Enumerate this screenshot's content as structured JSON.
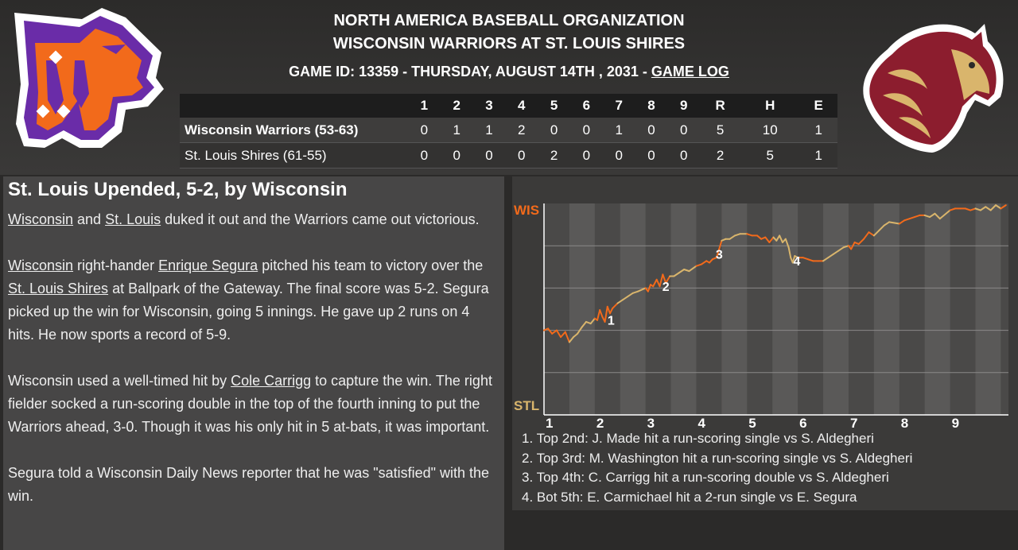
{
  "header": {
    "league": "NORTH AMERICA BASEBALL ORGANIZATION",
    "matchup": "WISCONSIN WARRIORS AT ST. LOUIS SHIRES",
    "game_info": "GAME ID: 13359 - THURSDAY, AUGUST 14TH , 2031 - ",
    "game_log_link": "GAME LOG"
  },
  "colors": {
    "away": "#f26a1b",
    "home": "#d9b56c",
    "away_logo_purple": "#6a2ca8",
    "home_logo_maroon": "#8c1d2e"
  },
  "boxscore": {
    "columns": [
      "1",
      "2",
      "3",
      "4",
      "5",
      "6",
      "7",
      "8",
      "9",
      "R",
      "H",
      "E"
    ],
    "rows": [
      {
        "team": "Wisconsin Warriors (53-63)",
        "values": [
          "0",
          "1",
          "1",
          "2",
          "0",
          "0",
          "1",
          "0",
          "0",
          "5",
          "10",
          "1"
        ]
      },
      {
        "team": "St. Louis Shires (61-55)",
        "values": [
          "0",
          "0",
          "0",
          "0",
          "2",
          "0",
          "0",
          "0",
          "0",
          "2",
          "5",
          "1"
        ]
      }
    ]
  },
  "article": {
    "headline": "St. Louis Upended, 5-2, by Wisconsin",
    "p1": {
      "link1": "Wisconsin",
      "t1": " and ",
      "link2": "St. Louis",
      "t2": " duked it out and the Warriors came out victorious."
    },
    "p2": {
      "link1": "Wisconsin",
      "t1": " right-hander ",
      "link2": "Enrique Segura",
      "t2": " pitched his team to victory over the ",
      "link3": "St. Louis Shires",
      "t3": " at Ballpark of the Gateway. The final score was 5-2. Segura picked up the win for Wisconsin, going 5 innings. He gave up 2 runs on 4 hits. He now sports a record of 5-9."
    },
    "p3": {
      "t1": "Wisconsin used a well-timed hit by ",
      "link1": "Cole Carrigg",
      "t2": " to capture the win. The right fielder socked a run-scoring double in the top of the fourth inning to put the Warriors ahead, 3-0. Though it was his only hit in 5 at-bats, it was important."
    },
    "p4": "Segura told a Wisconsin Daily News reporter that he was \"satisfied\" with the win."
  },
  "chart_data": {
    "type": "line",
    "ylabels": {
      "top": "WIS",
      "bottom": "STL"
    },
    "x_ticks": [
      "1",
      "2",
      "3",
      "4",
      "5",
      "6",
      "7",
      "8",
      "9"
    ],
    "series": [
      {
        "values": [
          [
            0.0,
            0.5
          ],
          [
            0.08,
            0.51
          ],
          [
            0.16,
            0.48
          ],
          [
            0.25,
            0.5
          ],
          [
            0.33,
            0.46
          ],
          [
            0.42,
            0.49
          ],
          [
            0.5,
            0.43
          ],
          [
            0.58,
            0.46
          ],
          [
            0.66,
            0.48
          ],
          [
            0.75,
            0.52
          ],
          [
            0.83,
            0.55
          ],
          [
            0.92,
            0.54
          ],
          [
            1.0,
            0.57
          ],
          [
            1.05,
            0.56
          ],
          [
            1.1,
            0.62
          ],
          [
            1.15,
            0.58
          ],
          [
            1.2,
            0.55
          ],
          [
            1.25,
            0.64
          ],
          [
            1.3,
            0.6
          ],
          [
            1.35,
            0.63
          ],
          [
            1.45,
            0.66
          ],
          [
            1.55,
            0.68
          ],
          [
            1.65,
            0.7
          ],
          [
            1.75,
            0.72
          ],
          [
            1.85,
            0.73
          ],
          [
            2.0,
            0.75
          ],
          [
            2.05,
            0.73
          ],
          [
            2.1,
            0.77
          ],
          [
            2.15,
            0.76
          ],
          [
            2.22,
            0.8
          ],
          [
            2.28,
            0.76
          ],
          [
            2.34,
            0.83
          ],
          [
            2.4,
            0.78
          ],
          [
            2.48,
            0.82
          ],
          [
            2.56,
            0.82
          ],
          [
            2.66,
            0.84
          ],
          [
            2.76,
            0.86
          ],
          [
            2.86,
            0.85
          ],
          [
            3.0,
            0.88
          ],
          [
            3.1,
            0.89
          ],
          [
            3.2,
            0.91
          ],
          [
            3.26,
            0.9
          ],
          [
            3.32,
            0.92
          ],
          [
            3.4,
            0.93
          ],
          [
            3.45,
            0.98
          ],
          [
            3.5,
            1.03
          ],
          [
            3.58,
            1.04
          ],
          [
            3.66,
            1.04
          ],
          [
            3.76,
            1.06
          ],
          [
            3.86,
            1.07
          ],
          [
            4.0,
            1.07
          ],
          [
            4.1,
            1.06
          ],
          [
            4.2,
            1.06
          ],
          [
            4.28,
            1.04
          ],
          [
            4.36,
            1.05
          ],
          [
            4.44,
            1.02
          ],
          [
            4.52,
            1.05
          ],
          [
            4.58,
            1.03
          ],
          [
            4.64,
            1.06
          ],
          [
            4.7,
            1.02
          ],
          [
            4.76,
            1.04
          ],
          [
            4.82,
            0.99
          ],
          [
            4.86,
            0.93
          ],
          [
            4.9,
            0.9
          ],
          [
            4.94,
            0.94
          ],
          [
            5.0,
            0.93
          ],
          [
            5.1,
            0.93
          ],
          [
            5.2,
            0.92
          ],
          [
            5.3,
            0.91
          ],
          [
            5.4,
            0.91
          ],
          [
            5.5,
            0.91
          ],
          [
            5.6,
            0.93
          ],
          [
            5.7,
            0.95
          ],
          [
            5.8,
            0.97
          ],
          [
            5.9,
            0.99
          ],
          [
            6.0,
            1.0
          ],
          [
            6.05,
            0.98
          ],
          [
            6.12,
            1.02
          ],
          [
            6.2,
            1.01
          ],
          [
            6.3,
            1.04
          ],
          [
            6.4,
            1.08
          ],
          [
            6.5,
            1.06
          ],
          [
            6.6,
            1.09
          ],
          [
            6.7,
            1.12
          ],
          [
            6.8,
            1.14
          ],
          [
            7.0,
            1.13
          ],
          [
            7.1,
            1.15
          ],
          [
            7.2,
            1.16
          ],
          [
            7.3,
            1.17
          ],
          [
            7.4,
            1.18
          ],
          [
            7.5,
            1.18
          ],
          [
            7.6,
            1.17
          ],
          [
            7.7,
            1.19
          ],
          [
            7.8,
            1.16
          ],
          [
            8.0,
            1.21
          ],
          [
            8.1,
            1.22
          ],
          [
            8.2,
            1.22
          ],
          [
            8.3,
            1.22
          ],
          [
            8.4,
            1.21
          ],
          [
            8.5,
            1.22
          ],
          [
            8.6,
            1.21
          ],
          [
            8.7,
            1.23
          ],
          [
            8.8,
            1.21
          ],
          [
            8.9,
            1.24
          ],
          [
            9.0,
            1.22
          ],
          [
            9.1,
            1.24
          ]
        ]
      }
    ],
    "annotations": [
      {
        "label": "1",
        "x": 1.22,
        "y": 0.57
      },
      {
        "label": "2",
        "x": 2.3,
        "y": 0.77
      },
      {
        "label": "3",
        "x": 3.35,
        "y": 0.96
      },
      {
        "label": "4",
        "x": 4.88,
        "y": 0.92
      }
    ],
    "notes": [
      "1. Top 2nd: J. Made hit a run-scoring single vs S. Aldegheri",
      "2. Top 3rd: M. Washington hit a run-scoring single vs S. Aldegheri",
      "3. Top 4th: C. Carrigg hit a run-scoring double vs S. Aldegheri",
      "4. Bot 5th: E. Carmichael hit a 2-run single vs E. Segura"
    ]
  }
}
